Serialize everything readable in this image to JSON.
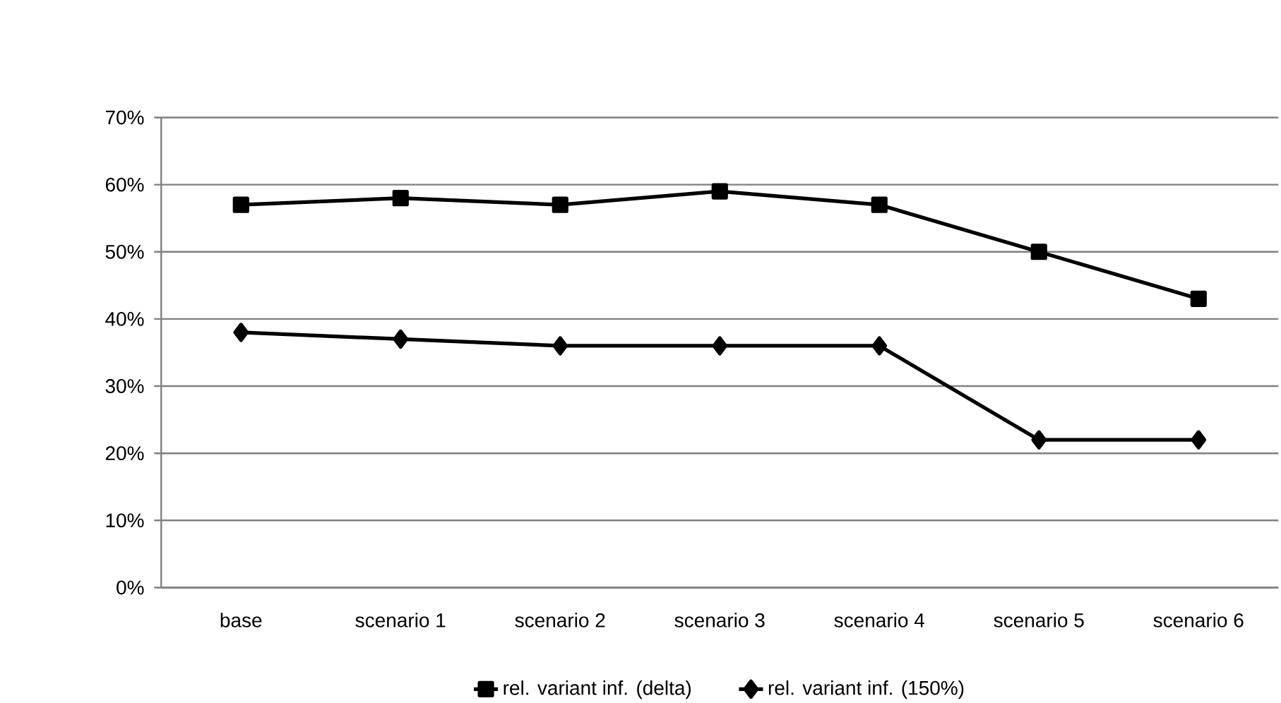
{
  "chart_data": {
    "type": "line",
    "categories": [
      "base",
      "scenario 1",
      "scenario 2",
      "scenario 3",
      "scenario 4",
      "scenario 5",
      "scenario 6"
    ],
    "series": [
      {
        "name": "rel. variant inf. (delta)",
        "color": "#000000",
        "marker": "square",
        "values": [
          57,
          58,
          57,
          59,
          57,
          50,
          43
        ]
      },
      {
        "name": "rel. variant inf. (150%)",
        "color": "#000000",
        "marker": "diamond",
        "values": [
          38,
          37,
          36,
          36,
          36,
          22,
          22
        ]
      }
    ],
    "ylim": [
      0,
      70
    ],
    "yticks": [
      {
        "value": 0,
        "label": "0%"
      },
      {
        "value": 10,
        "label": "10%"
      },
      {
        "value": 20,
        "label": "20%"
      },
      {
        "value": 30,
        "label": "30%"
      },
      {
        "value": 40,
        "label": "40%"
      },
      {
        "value": 50,
        "label": "50%"
      },
      {
        "value": 60,
        "label": "60%"
      },
      {
        "value": 70,
        "label": "70%"
      }
    ],
    "grid": "y",
    "legend": "bottom",
    "line_style": "solid"
  }
}
